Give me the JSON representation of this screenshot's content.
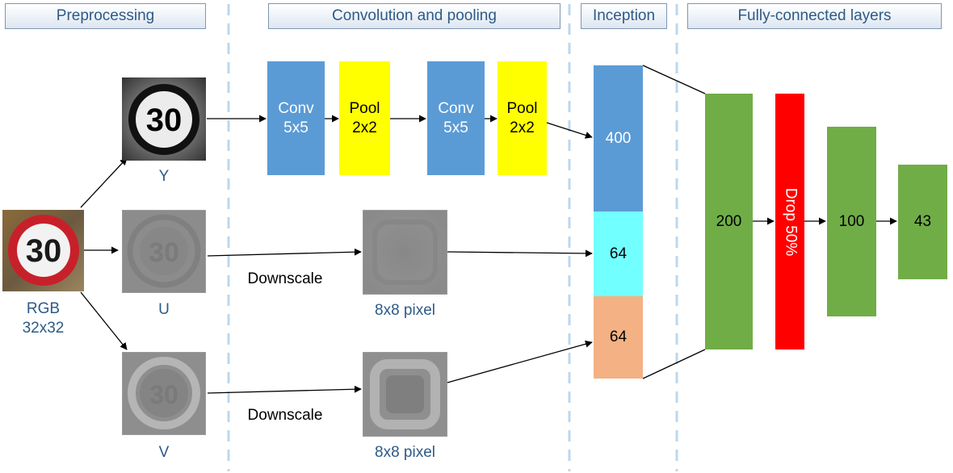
{
  "headers": {
    "preprocessing": "Preprocessing",
    "conv_pooling": "Convolution and pooling",
    "inception": "Inception",
    "fc_layers": "Fully-connected layers"
  },
  "inputs": {
    "rgb_label": "RGB\n32x32",
    "y_label": "Y",
    "u_label": "U",
    "v_label": "V",
    "sign_text": "30"
  },
  "conv": {
    "conv1": "Conv\n5x5",
    "pool1": "Pool\n2x2",
    "conv2": "Conv\n5x5",
    "pool2": "Pool\n2x2"
  },
  "downscale": {
    "u_text": "Downscale",
    "v_text": "Downscale",
    "u_result": "8x8 pixel",
    "v_result": "8x8 pixel"
  },
  "inception": {
    "y_size": "400",
    "u_size": "64",
    "v_size": "64"
  },
  "fc": {
    "layer1": "200",
    "dropout": "Drop 50%",
    "layer2": "100",
    "output": "43"
  },
  "colors": {
    "conv": "#5b9bd5",
    "pool": "#ffff00",
    "inception_y": "#5b9bd5",
    "inception_u": "#72ffff",
    "inception_v": "#f4b183",
    "fc": "#70ad47",
    "dropout": "#ff0000",
    "divider": "#bdd7ee"
  }
}
